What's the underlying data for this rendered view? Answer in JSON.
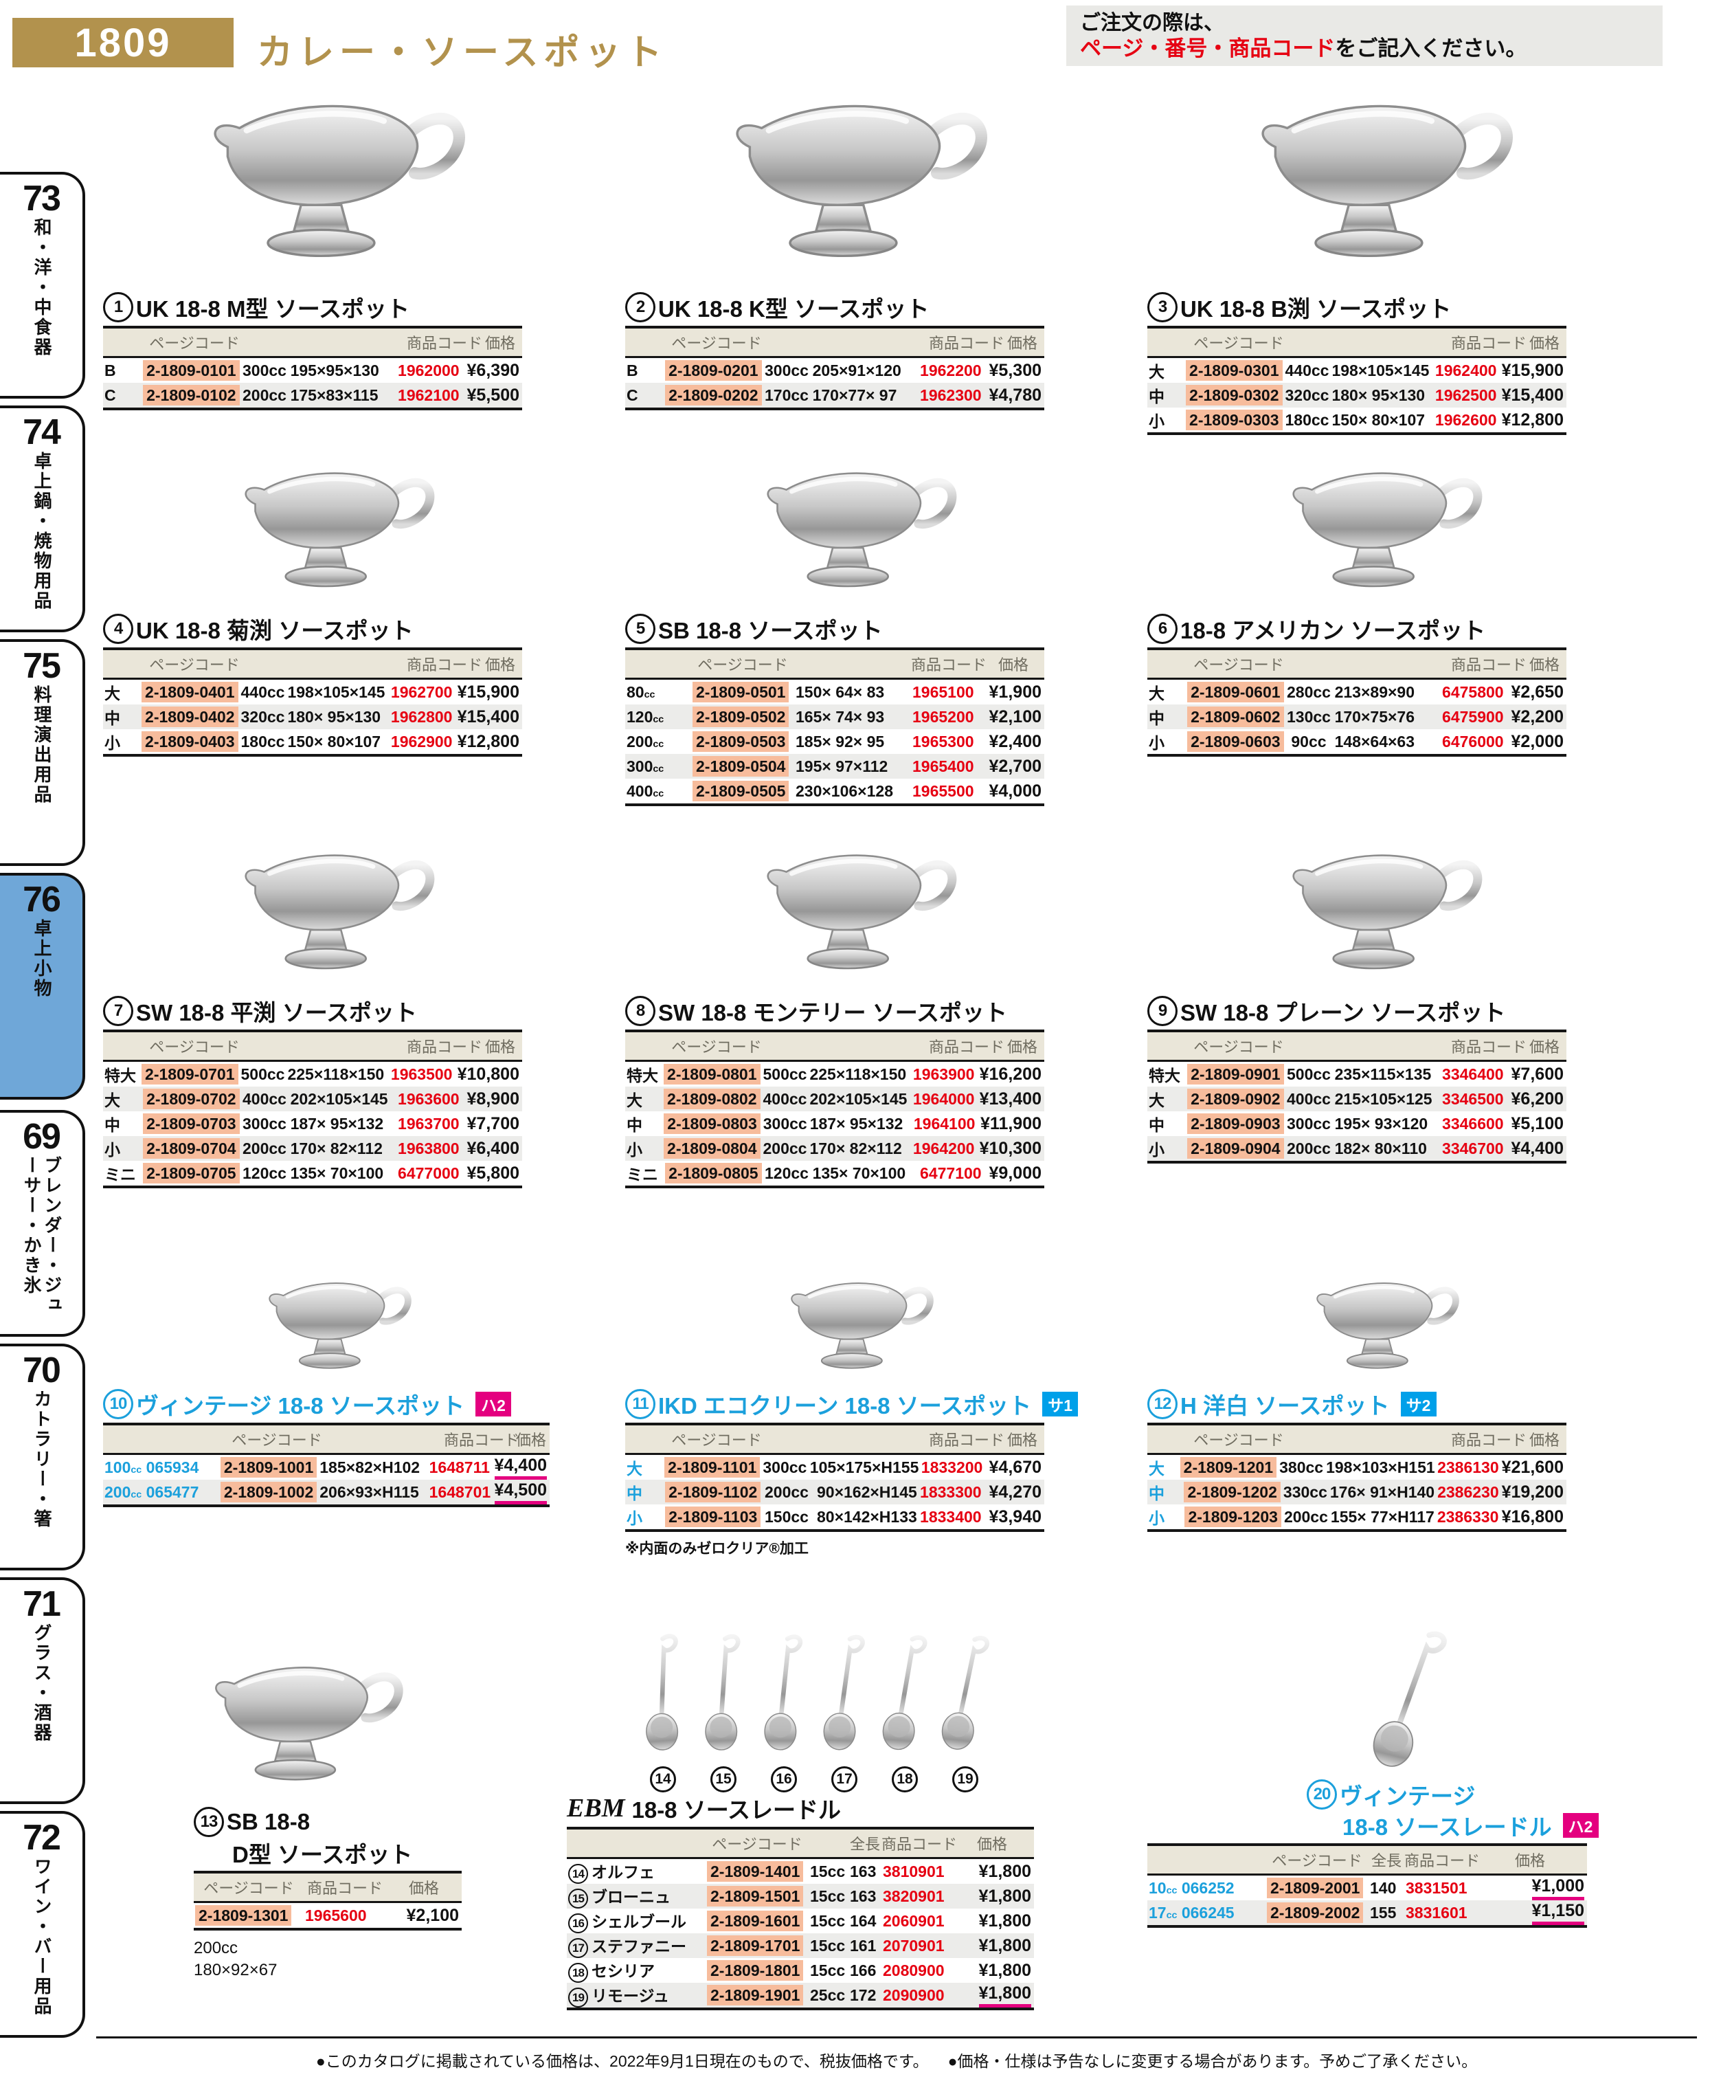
{
  "page": {
    "number": "1809",
    "title": "カレー・ソースポット"
  },
  "order_note": {
    "line1": "ご注文の際は、",
    "line2_red": "ページ・番号・商品コード",
    "line2_black": "をご記入ください。"
  },
  "sidebar": {
    "items": [
      {
        "number": "73",
        "label": "和・洋・中食器",
        "active": false
      },
      {
        "number": "74",
        "label": "卓上鍋・焼物用品",
        "active": false
      },
      {
        "number": "75",
        "label": "料理演出用品",
        "active": false
      },
      {
        "number": "76",
        "label": "卓上小物",
        "active": true
      },
      {
        "number": "69",
        "label": "ブレンダー・ジューサー・かき氷",
        "active": false
      },
      {
        "number": "70",
        "label": "カトラリー・箸",
        "active": false
      },
      {
        "number": "71",
        "label": "グラス・酒器",
        "active": false
      },
      {
        "number": "72",
        "label": "ワイン・バー用品",
        "active": false
      }
    ]
  },
  "table_headers": {
    "page_code": "ページコード",
    "product_code": "商品コード",
    "price": "価格",
    "total_length": "全長"
  },
  "products": [
    {
      "num": "1",
      "title": "UK 18-8 M型 ソースポット",
      "style": "standard",
      "image": "pot",
      "rows": [
        {
          "size": "B",
          "page_code": "2-1809-0101",
          "capacity": "300cc",
          "dims": "195×95×130",
          "code": "1962000",
          "price": "¥6,390"
        },
        {
          "size": "C",
          "page_code": "2-1809-0102",
          "capacity": "200cc",
          "dims": "175×83×115",
          "code": "1962100",
          "price": "¥5,500"
        }
      ]
    },
    {
      "num": "2",
      "title": "UK 18-8 K型 ソースポット",
      "style": "standard",
      "image": "pot",
      "rows": [
        {
          "size": "B",
          "page_code": "2-1809-0201",
          "capacity": "300cc",
          "dims": "205×91×120",
          "code": "1962200",
          "price": "¥5,300"
        },
        {
          "size": "C",
          "page_code": "2-1809-0202",
          "capacity": "170cc",
          "dims": "170×77× 97",
          "code": "1962300",
          "price": "¥4,780"
        }
      ]
    },
    {
      "num": "3",
      "title": "UK 18-8 B渕 ソースポット",
      "style": "standard",
      "image": "pot",
      "rows": [
        {
          "size": "大",
          "page_code": "2-1809-0301",
          "capacity": "440cc",
          "dims": "198×105×145",
          "code": "1962400",
          "price": "¥15,900"
        },
        {
          "size": "中",
          "page_code": "2-1809-0302",
          "capacity": "320cc",
          "dims": "180× 95×130",
          "code": "1962500",
          "price": "¥15,400"
        },
        {
          "size": "小",
          "page_code": "2-1809-0303",
          "capacity": "180cc",
          "dims": "150× 80×107",
          "code": "1962600",
          "price": "¥12,800"
        }
      ]
    },
    {
      "num": "4",
      "title": "UK 18-8 菊渕 ソースポット",
      "style": "standard",
      "image": "pot",
      "rows": [
        {
          "size": "大",
          "page_code": "2-1809-0401",
          "capacity": "440cc",
          "dims": "198×105×145",
          "code": "1962700",
          "price": "¥15,900"
        },
        {
          "size": "中",
          "page_code": "2-1809-0402",
          "capacity": "320cc",
          "dims": "180× 95×130",
          "code": "1962800",
          "price": "¥15,400"
        },
        {
          "size": "小",
          "page_code": "2-1809-0403",
          "capacity": "180cc",
          "dims": "150× 80×107",
          "code": "1962900",
          "price": "¥12,800"
        }
      ]
    },
    {
      "num": "5",
      "title": "SB 18-8 ソースポット",
      "style": "nocap",
      "image": "pot",
      "rows": [
        {
          "size": "80",
          "unit": "cc",
          "page_code": "2-1809-0501",
          "dims": "150× 64× 83",
          "code": "1965100",
          "price": "¥1,900"
        },
        {
          "size": "120",
          "unit": "cc",
          "page_code": "2-1809-0502",
          "dims": "165× 74× 93",
          "code": "1965200",
          "price": "¥2,100"
        },
        {
          "size": "200",
          "unit": "cc",
          "page_code": "2-1809-0503",
          "dims": "185× 92× 95",
          "code": "1965300",
          "price": "¥2,400"
        },
        {
          "size": "300",
          "unit": "cc",
          "page_code": "2-1809-0504",
          "dims": "195× 97×112",
          "code": "1965400",
          "price": "¥2,700"
        },
        {
          "size": "400",
          "unit": "cc",
          "page_code": "2-1809-0505",
          "dims": "230×106×128",
          "code": "1965500",
          "price": "¥4,000"
        }
      ]
    },
    {
      "num": "6",
      "title": "18-8 アメリカン ソースポット",
      "style": "standard",
      "image": "pot",
      "rows": [
        {
          "size": "大",
          "page_code": "2-1809-0601",
          "capacity": "280cc",
          "dims": "213×89×90",
          "code": "6475800",
          "price": "¥2,650"
        },
        {
          "size": "中",
          "page_code": "2-1809-0602",
          "capacity": "130cc",
          "dims": "170×75×76",
          "code": "6475900",
          "price": "¥2,200"
        },
        {
          "size": "小",
          "page_code": "2-1809-0603",
          "capacity": " 90cc",
          "dims": "148×64×63",
          "code": "6476000",
          "price": "¥2,000"
        }
      ]
    },
    {
      "num": "7",
      "title": "SW 18-8 平渕 ソースポット",
      "style": "standard",
      "image": "pot",
      "rows": [
        {
          "size": "特大",
          "page_code": "2-1809-0701",
          "capacity": "500cc",
          "dims": "225×118×150",
          "code": "1963500",
          "price": "¥10,800"
        },
        {
          "size": "大",
          "page_code": "2-1809-0702",
          "capacity": "400cc",
          "dims": "202×105×145",
          "code": "1963600",
          "price": "¥8,900"
        },
        {
          "size": "中",
          "page_code": "2-1809-0703",
          "capacity": "300cc",
          "dims": "187× 95×132",
          "code": "1963700",
          "price": "¥7,700"
        },
        {
          "size": "小",
          "page_code": "2-1809-0704",
          "capacity": "200cc",
          "dims": "170× 82×112",
          "code": "1963800",
          "price": "¥6,400"
        },
        {
          "size": "ミニ",
          "page_code": "2-1809-0705",
          "capacity": "120cc",
          "dims": "135× 70×100",
          "code": "6477000",
          "price": "¥5,800"
        }
      ]
    },
    {
      "num": "8",
      "title": "SW 18-8 モンテリー ソースポット",
      "style": "standard",
      "image": "pot",
      "rows": [
        {
          "size": "特大",
          "page_code": "2-1809-0801",
          "capacity": "500cc",
          "dims": "225×118×150",
          "code": "1963900",
          "price": "¥16,200"
        },
        {
          "size": "大",
          "page_code": "2-1809-0802",
          "capacity": "400cc",
          "dims": "202×105×145",
          "code": "1964000",
          "price": "¥13,400"
        },
        {
          "size": "中",
          "page_code": "2-1809-0803",
          "capacity": "300cc",
          "dims": "187× 95×132",
          "code": "1964100",
          "price": "¥11,900"
        },
        {
          "size": "小",
          "page_code": "2-1809-0804",
          "capacity": "200cc",
          "dims": "170× 82×112",
          "code": "1964200",
          "price": "¥10,300"
        },
        {
          "size": "ミニ",
          "page_code": "2-1809-0805",
          "capacity": "120cc",
          "dims": "135× 70×100",
          "code": "6477100",
          "price": "¥9,000"
        }
      ]
    },
    {
      "num": "9",
      "title": "SW 18-8 プレーン ソースポット",
      "style": "standard",
      "image": "pot",
      "rows": [
        {
          "size": "特大",
          "page_code": "2-1809-0901",
          "capacity": "500cc",
          "dims": "235×115×135",
          "code": "3346400",
          "price": "¥7,600"
        },
        {
          "size": "大",
          "page_code": "2-1809-0902",
          "capacity": "400cc",
          "dims": "215×105×125",
          "code": "3346500",
          "price": "¥6,200"
        },
        {
          "size": "中",
          "page_code": "2-1809-0903",
          "capacity": "300cc",
          "dims": "195× 93×120",
          "code": "3346600",
          "price": "¥5,100"
        },
        {
          "size": "小",
          "page_code": "2-1809-0904",
          "capacity": "200cc",
          "dims": "182× 80×110",
          "code": "3346700",
          "price": "¥4,400"
        }
      ]
    },
    {
      "num": "10",
      "title": "ヴィンテージ 18-8 ソースポット",
      "title_color": "blue",
      "badge": {
        "label": "ハ2",
        "color": "#e4007f"
      },
      "size_color": "blue",
      "style": "vintage",
      "image": "pot",
      "rows": [
        {
          "size": "100",
          "unit": "cc",
          "stock": "065934",
          "page_code": "2-1809-1001",
          "dims": "185×82×H102",
          "code": "1648711",
          "price": "¥4,400",
          "underline": true
        },
        {
          "size": "200",
          "unit": "cc",
          "stock": "065477",
          "page_code": "2-1809-1002",
          "dims": "206×93×H115",
          "code": "1648701",
          "price": "¥4,500",
          "underline": true
        }
      ]
    },
    {
      "num": "11",
      "title": "IKD エコクリーン 18-8 ソースポット",
      "title_color": "blue",
      "badge": {
        "label": "サ1",
        "color": "#00a0e9"
      },
      "size_color": "blue",
      "style": "standard",
      "image": "pot",
      "note": "※内面のみゼロクリア®加工",
      "rows": [
        {
          "size": "大",
          "page_code": "2-1809-1101",
          "capacity": "300cc",
          "dims": "105×175×H155",
          "code": "1833200",
          "price": "¥4,670"
        },
        {
          "size": "中",
          "page_code": "2-1809-1102",
          "capacity": "200cc",
          "dims": " 90×162×H145",
          "code": "1833300",
          "price": "¥4,270"
        },
        {
          "size": "小",
          "page_code": "2-1809-1103",
          "capacity": "150cc",
          "dims": " 80×142×H133",
          "code": "1833400",
          "price": "¥3,940"
        }
      ]
    },
    {
      "num": "12",
      "title": "H 洋白 ソースポット",
      "title_color": "blue",
      "badge": {
        "label": "サ2",
        "color": "#00a0e9"
      },
      "size_color": "blue",
      "style": "standard",
      "image": "pot",
      "rows": [
        {
          "size": "大",
          "page_code": "2-1809-1201",
          "capacity": "380cc",
          "dims": "198×103×H151",
          "code": "2386130",
          "price": "¥21,600"
        },
        {
          "size": "中",
          "page_code": "2-1809-1202",
          "capacity": "330cc",
          "dims": "176× 91×H140",
          "code": "2386230",
          "price": "¥19,200"
        },
        {
          "size": "小",
          "page_code": "2-1809-1203",
          "capacity": "200cc",
          "dims": "155× 77×H117",
          "code": "2386330",
          "price": "¥16,800"
        }
      ]
    },
    {
      "num": "13",
      "title": "SB 18-8",
      "title2": "D型 ソースポット",
      "style": "mini",
      "image": "pot",
      "extra": [
        "200cc",
        "180×92×67"
      ],
      "rows": [
        {
          "page_code": "2-1809-1301",
          "code": "1965600",
          "price": "¥2,100"
        }
      ]
    },
    {
      "brand": "EBM",
      "title": "18-8 ソースレードル",
      "style": "ladles",
      "image": "ladles",
      "rows": [
        {
          "num": "14",
          "name": "オルフェ",
          "page_code": "2-1809-1401",
          "capacity": "15cc",
          "length": "163",
          "code": "3810901",
          "price": "¥1,800"
        },
        {
          "num": "15",
          "name": "ブローニュ",
          "page_code": "2-1809-1501",
          "capacity": "15cc",
          "length": "163",
          "code": "3820901",
          "price": "¥1,800"
        },
        {
          "num": "16",
          "name": "シェルブール",
          "page_code": "2-1809-1601",
          "capacity": "15cc",
          "length": "164",
          "code": "2060901",
          "price": "¥1,800"
        },
        {
          "num": "17",
          "name": "ステファニー",
          "page_code": "2-1809-1701",
          "capacity": "15cc",
          "length": "161",
          "code": "2070901",
          "price": "¥1,800"
        },
        {
          "num": "18",
          "name": "セシリア",
          "page_code": "2-1809-1801",
          "capacity": "15cc",
          "length": "166",
          "code": "2080900",
          "price": "¥1,800"
        },
        {
          "num": "19",
          "name": "リモージュ",
          "page_code": "2-1809-1901",
          "capacity": "25cc",
          "length": "172",
          "code": "2090900",
          "price": "¥1,800",
          "underline": true
        }
      ]
    },
    {
      "num": "20",
      "title": "ヴィンテージ",
      "title2": "18-8 ソースレードル",
      "title_color": "blue",
      "badge": {
        "label": "ハ2",
        "color": "#e4007f"
      },
      "size_color": "blue",
      "style": "vladle",
      "image": "ladle",
      "rows": [
        {
          "size": "10",
          "unit": "cc",
          "stock": "066252",
          "page_code": "2-1809-2001",
          "length": "140",
          "code": "3831501",
          "price": "¥1,000",
          "underline": true
        },
        {
          "size": "17",
          "unit": "cc",
          "stock": "066245",
          "page_code": "2-1809-2002",
          "length": "155",
          "code": "3831601",
          "price": "¥1,150",
          "underline": true
        }
      ]
    }
  ],
  "footer": {
    "note1": "●このカタログに掲載されている価格は、2022年9月1日現在のもので、税抜価格です。",
    "note2": "●価格・仕様は予告なしに変更する場合があります。予めご了承ください。"
  },
  "colors": {
    "gold": "#b2924d",
    "code_red": "#e60012",
    "page_code_highlight": "#f7bc9c",
    "blue": "#1ba0dc",
    "magenta": "#e4007f",
    "sidebar_active": "#6fa7d8",
    "table_header_bg": "#eae6d9"
  }
}
